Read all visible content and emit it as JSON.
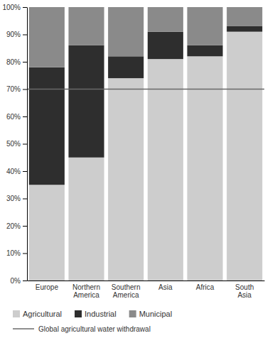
{
  "chart_data": {
    "type": "bar",
    "stacked": true,
    "grid": false,
    "legend": "bottom",
    "categories": [
      "Europe",
      "Northern America",
      "Southern America",
      "Asia",
      "Africa",
      "South Asia"
    ],
    "series": [
      {
        "name": "Agricultural",
        "color": "#cdcdcd",
        "values": [
          35,
          45,
          74,
          81,
          82,
          91
        ]
      },
      {
        "name": "Industrial",
        "color": "#2e2e2e",
        "values": [
          43,
          41,
          8,
          10,
          4,
          2
        ]
      },
      {
        "name": "Municipal",
        "color": "#8a8a8a",
        "values": [
          22,
          14,
          18,
          9,
          14,
          7
        ]
      }
    ],
    "ylim": [
      0,
      100
    ],
    "yticks": [
      {
        "value": 0,
        "label": "0%"
      },
      {
        "value": 10,
        "label": "10%"
      },
      {
        "value": 20,
        "label": "20%"
      },
      {
        "value": 30,
        "label": "30%"
      },
      {
        "value": 40,
        "label": "40%"
      },
      {
        "value": 50,
        "label": "50%"
      },
      {
        "value": 60,
        "label": "60%"
      },
      {
        "value": 70,
        "label": "70%"
      },
      {
        "value": 80,
        "label": "80%"
      },
      {
        "value": 90,
        "label": "90%"
      },
      {
        "value": 100,
        "label": "100%"
      }
    ],
    "reference_line": {
      "value": 70,
      "label": "Global agricultural water withdrawal",
      "color": "#6a6a6a"
    }
  }
}
